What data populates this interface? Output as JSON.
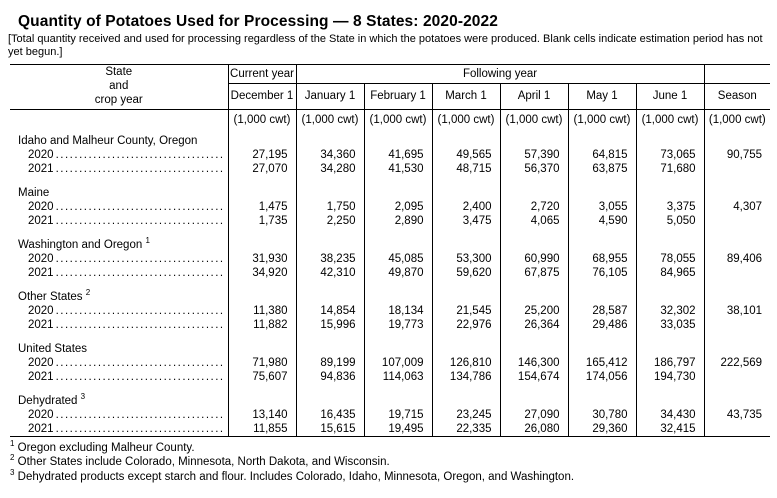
{
  "title": "Quantity of Potatoes Used for Processing — 8 States: 2020-2022",
  "note": "[Total quantity received and used for processing regardless of the State in which the potatoes were produced. Blank cells indicate estimation period has not yet begun.]",
  "table": {
    "stub_header": [
      "State",
      "and",
      "crop year"
    ],
    "col_groups": {
      "current_year": "Current year",
      "following_year": "Following year"
    },
    "columns": [
      "December 1",
      "January 1",
      "February 1",
      "March 1",
      "April 1",
      "May 1",
      "June 1",
      "Season"
    ],
    "unit": "(1,000 cwt)",
    "groups": [
      {
        "label": "Idaho and Malheur County, Oregon",
        "sup": "",
        "rows": [
          {
            "year": "2020",
            "values": [
              "27,195",
              "34,360",
              "41,695",
              "49,565",
              "57,390",
              "64,815",
              "73,065",
              "90,755"
            ]
          },
          {
            "year": "2021",
            "values": [
              "27,070",
              "34,280",
              "41,530",
              "48,715",
              "56,370",
              "63,875",
              "71,680",
              ""
            ]
          }
        ]
      },
      {
        "label": "Maine",
        "sup": "",
        "rows": [
          {
            "year": "2020",
            "values": [
              "1,475",
              "1,750",
              "2,095",
              "2,400",
              "2,720",
              "3,055",
              "3,375",
              "4,307"
            ]
          },
          {
            "year": "2021",
            "values": [
              "1,735",
              "2,250",
              "2,890",
              "3,475",
              "4,065",
              "4,590",
              "5,050",
              ""
            ]
          }
        ]
      },
      {
        "label": "Washington and Oregon",
        "sup": "1",
        "rows": [
          {
            "year": "2020",
            "values": [
              "31,930",
              "38,235",
              "45,085",
              "53,300",
              "60,990",
              "68,955",
              "78,055",
              "89,406"
            ]
          },
          {
            "year": "2021",
            "values": [
              "34,920",
              "42,310",
              "49,870",
              "59,620",
              "67,875",
              "76,105",
              "84,965",
              ""
            ]
          }
        ]
      },
      {
        "label": "Other States",
        "sup": "2",
        "rows": [
          {
            "year": "2020",
            "values": [
              "11,380",
              "14,854",
              "18,134",
              "21,545",
              "25,200",
              "28,587",
              "32,302",
              "38,101"
            ]
          },
          {
            "year": "2021",
            "values": [
              "11,882",
              "15,996",
              "19,773",
              "22,976",
              "26,364",
              "29,486",
              "33,035",
              ""
            ]
          }
        ]
      },
      {
        "label": "United States",
        "sup": "",
        "rows": [
          {
            "year": "2020",
            "values": [
              "71,980",
              "89,199",
              "107,009",
              "126,810",
              "146,300",
              "165,412",
              "186,797",
              "222,569"
            ]
          },
          {
            "year": "2021",
            "values": [
              "75,607",
              "94,836",
              "114,063",
              "134,786",
              "154,674",
              "174,056",
              "194,730",
              ""
            ]
          }
        ]
      },
      {
        "label": "Dehydrated",
        "sup": "3",
        "rows": [
          {
            "year": "2020",
            "values": [
              "13,140",
              "16,435",
              "19,715",
              "23,245",
              "27,090",
              "30,780",
              "34,430",
              "43,735"
            ]
          },
          {
            "year": "2021",
            "values": [
              "11,855",
              "15,615",
              "19,495",
              "22,335",
              "26,080",
              "29,360",
              "32,415",
              ""
            ]
          }
        ]
      }
    ]
  },
  "footnotes": [
    {
      "sup": "1",
      "text": "Oregon excluding Malheur County."
    },
    {
      "sup": "2",
      "text": "Other States include Colorado, Minnesota, North Dakota, and Wisconsin."
    },
    {
      "sup": "3",
      "text": "Dehydrated products except starch and flour. Includes Colorado, Idaho, Minnesota, Oregon, and Washington."
    }
  ]
}
